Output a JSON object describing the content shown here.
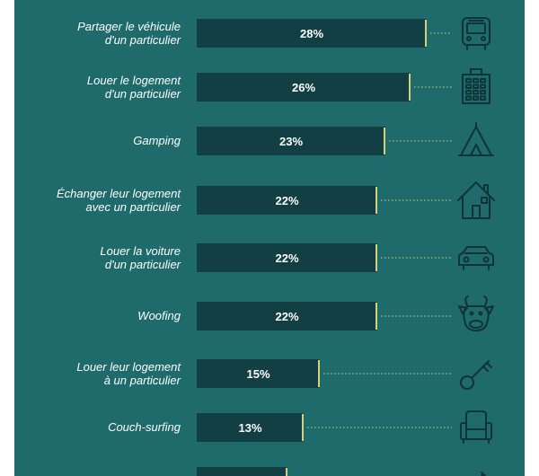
{
  "colors": {
    "panel": "#1f6b6b",
    "bar": "#113f43",
    "accent": "#d8cf7c",
    "label": "#ffffff",
    "icon": "#0f3438"
  },
  "chart_data": {
    "type": "bar",
    "orientation": "horizontal",
    "categories": [
      "Partager le véhicule d'un particulier",
      "Louer le logement d'un particulier",
      "Gamping",
      "Échanger leur logement avec un particulier",
      "Louer la voiture d'un particulier",
      "Woofing",
      "Louer leur logement à un particulier",
      "Couch-surfing",
      ""
    ],
    "label_lines": [
      [
        "Partager le véhicule",
        "d'un particulier"
      ],
      [
        "Louer le logement",
        "d'un particulier"
      ],
      [
        "Gamping"
      ],
      [
        "Échanger leur logement",
        "avec un particulier"
      ],
      [
        "Louer la voiture",
        "d'un particulier"
      ],
      [
        "Woofing"
      ],
      [
        "Louer leur logement",
        "à un particulier"
      ],
      [
        "Couch-surfing"
      ],
      []
    ],
    "values": [
      28,
      26,
      23,
      22,
      22,
      22,
      15,
      13,
      11
    ],
    "value_labels": [
      "28%",
      "26%",
      "23%",
      "22%",
      "22%",
      "22%",
      "15%",
      "13%",
      ""
    ],
    "icons": [
      "bus-icon",
      "building-icon",
      "tent-icon",
      "house-icon",
      "car-icon",
      "cow-icon",
      "key-icon",
      "armchair-icon",
      "pen-icon"
    ],
    "xlim": [
      0,
      28
    ]
  }
}
